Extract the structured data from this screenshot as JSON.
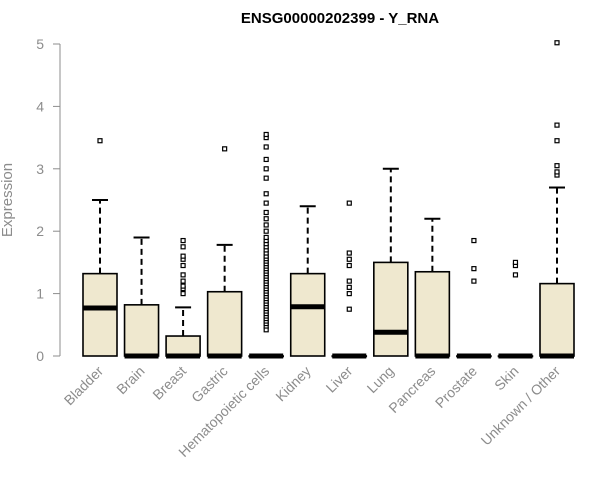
{
  "chart_data": {
    "type": "boxplot",
    "title": "ENSG00000202399 - Y_RNA",
    "xlabel": "",
    "ylabel": "Expression",
    "ylim": [
      0,
      5
    ],
    "yticks": [
      "0",
      "1",
      "2",
      "3",
      "4",
      "5"
    ],
    "grid": false,
    "legend": "none",
    "box_fill": "#efe8cf",
    "categories": [
      "Bladder",
      "Brain",
      "Breast",
      "Gastric",
      "Hematopoietic cells",
      "Kidney",
      "Liver",
      "Lung",
      "Pancreas",
      "Prostate",
      "Skin",
      "Unknown / Other"
    ],
    "boxes": [
      {
        "min": 0,
        "q1": 0,
        "median": 0.77,
        "q3": 1.32,
        "max": 2.5,
        "outliers": [
          3.45
        ]
      },
      {
        "min": 0,
        "q1": 0,
        "median": 0,
        "q3": 0.82,
        "max": 1.9,
        "outliers": []
      },
      {
        "min": 0,
        "q1": 0,
        "median": 0,
        "q3": 0.32,
        "max": 0.78,
        "outliers": [
          1.0,
          1.08,
          1.12,
          1.2,
          1.3,
          1.45,
          1.55,
          1.6,
          1.75,
          1.85
        ]
      },
      {
        "min": 0,
        "q1": 0,
        "median": 0,
        "q3": 1.03,
        "max": 1.78,
        "outliers": [
          3.32
        ]
      },
      {
        "min": 0,
        "q1": 0,
        "median": 0,
        "q3": 0,
        "max": 0,
        "outliers": [
          0.42,
          0.48,
          0.52,
          0.56,
          0.6,
          0.64,
          0.68,
          0.72,
          0.76,
          0.8,
          0.84,
          0.88,
          0.92,
          0.96,
          1.0,
          1.04,
          1.08,
          1.12,
          1.16,
          1.2,
          1.24,
          1.28,
          1.32,
          1.36,
          1.4,
          1.44,
          1.48,
          1.52,
          1.56,
          1.6,
          1.65,
          1.7,
          1.75,
          1.8,
          1.85,
          1.9,
          2.0,
          2.1,
          2.2,
          2.3,
          2.45,
          2.6,
          2.85,
          3.0,
          3.15,
          3.35,
          3.5,
          3.55
        ]
      },
      {
        "min": 0,
        "q1": 0,
        "median": 0.79,
        "q3": 1.32,
        "max": 2.4,
        "outliers": []
      },
      {
        "min": 0,
        "q1": 0,
        "median": 0,
        "q3": 0,
        "max": 0,
        "outliers": [
          0.75,
          1.0,
          1.1,
          1.2,
          1.45,
          1.55,
          1.65,
          2.45
        ]
      },
      {
        "min": 0,
        "q1": 0,
        "median": 0.38,
        "q3": 1.5,
        "max": 3.0,
        "outliers": []
      },
      {
        "min": 0,
        "q1": 0,
        "median": 0,
        "q3": 1.35,
        "max": 2.2,
        "outliers": []
      },
      {
        "min": 0,
        "q1": 0,
        "median": 0,
        "q3": 0,
        "max": 0,
        "outliers": [
          1.2,
          1.4,
          1.85
        ]
      },
      {
        "min": 0,
        "q1": 0,
        "median": 0,
        "q3": 0,
        "max": 0,
        "outliers": [
          1.3,
          1.45,
          1.5
        ]
      },
      {
        "min": 0,
        "q1": 0,
        "median": 0,
        "q3": 1.16,
        "max": 2.7,
        "outliers": [
          2.9,
          2.95,
          3.05,
          3.45,
          3.7,
          5.02
        ]
      }
    ]
  }
}
